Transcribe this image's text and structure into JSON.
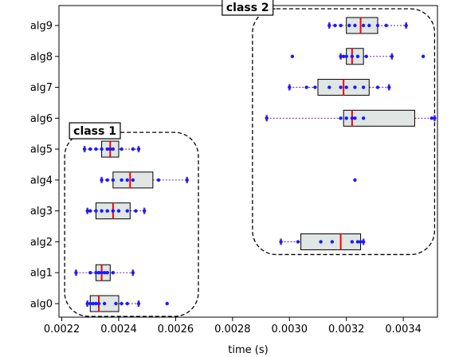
{
  "chart_data": {
    "type": "boxplot",
    "orientation": "horizontal",
    "xlabel": "time (s)",
    "ylabel": "",
    "title": "",
    "xlim": [
      0.00219,
      0.00352
    ],
    "xticks": [
      0.0022,
      0.0024,
      0.0026,
      0.0028,
      0.003,
      0.0032,
      0.0034
    ],
    "xtick_labels": [
      "0.0022",
      "0.0024",
      "0.0026",
      "0.0028",
      "0.0030",
      "0.0032",
      "0.0034"
    ],
    "grid": false,
    "categories": [
      "alg0",
      "alg1",
      "alg2",
      "alg3",
      "alg4",
      "alg5",
      "alg6",
      "alg7",
      "alg8",
      "alg9"
    ],
    "colors": {
      "box_fill": "#dfe6e4",
      "box_edge": "#000000",
      "median": "#ff0000",
      "points": "#1a1aff",
      "whisker": "#7a1a9a",
      "whisker_cap": "#6a2fc0"
    },
    "series": [
      {
        "category": "alg0",
        "whisker_low": 0.00229,
        "q1": 0.0023,
        "median": 0.00233,
        "q3": 0.0024,
        "whisker_high": 0.00247,
        "outliers": [
          0.00257
        ],
        "points": [
          0.00229,
          0.0023,
          0.00231,
          0.00232,
          0.00233,
          0.00235,
          0.00239,
          0.00241,
          0.00243,
          0.00247
        ]
      },
      {
        "category": "alg1",
        "whisker_low": 0.00225,
        "q1": 0.00232,
        "median": 0.00234,
        "q3": 0.00237,
        "whisker_high": 0.00245,
        "outliers": [],
        "points": [
          0.00225,
          0.0023,
          0.00232,
          0.00233,
          0.00234,
          0.00235,
          0.00236,
          0.00238,
          0.00245
        ]
      },
      {
        "category": "alg2",
        "whisker_low": 0.00297,
        "q1": 0.00304,
        "median": 0.00318,
        "q3": 0.00325,
        "whisker_high": 0.00326,
        "outliers": [],
        "points": [
          0.00297,
          0.00303,
          0.00311,
          0.00315,
          0.00322,
          0.00324,
          0.00325,
          0.00326
        ]
      },
      {
        "category": "alg3",
        "whisker_low": 0.00229,
        "q1": 0.00232,
        "median": 0.00238,
        "q3": 0.00244,
        "whisker_high": 0.00249,
        "outliers": [],
        "points": [
          0.00229,
          0.0023,
          0.00232,
          0.00234,
          0.00236,
          0.00238,
          0.0024,
          0.00243,
          0.00246,
          0.00249
        ]
      },
      {
        "category": "alg4",
        "whisker_low": 0.00234,
        "q1": 0.00238,
        "median": 0.00244,
        "q3": 0.00252,
        "whisker_high": 0.00264,
        "outliers": [
          0.00323
        ],
        "points": [
          0.00234,
          0.00236,
          0.00238,
          0.00241,
          0.00243,
          0.00245,
          0.00254,
          0.00264
        ]
      },
      {
        "category": "alg5",
        "whisker_low": 0.00228,
        "q1": 0.00234,
        "median": 0.00237,
        "q3": 0.0024,
        "whisker_high": 0.00247,
        "outliers": [],
        "points": [
          0.00228,
          0.0023,
          0.00232,
          0.00234,
          0.00236,
          0.00237,
          0.00238,
          0.00241,
          0.00245,
          0.00247
        ]
      },
      {
        "category": "alg6",
        "whisker_low": 0.00292,
        "q1": 0.00319,
        "median": 0.00322,
        "q3": 0.00344,
        "whisker_high": 0.00351,
        "outliers": [],
        "points": [
          0.00292,
          0.00318,
          0.0032,
          0.00322,
          0.00323,
          0.00326,
          0.0035,
          0.00351
        ]
      },
      {
        "category": "alg7",
        "whisker_low": 0.003,
        "q1": 0.0031,
        "median": 0.00319,
        "q3": 0.00328,
        "whisker_high": 0.00335,
        "outliers": [],
        "points": [
          0.003,
          0.00306,
          0.00309,
          0.00314,
          0.00318,
          0.0032,
          0.00323,
          0.00326,
          0.00331,
          0.00335
        ]
      },
      {
        "category": "alg8",
        "whisker_low": 0.00318,
        "q1": 0.0032,
        "median": 0.00322,
        "q3": 0.00326,
        "whisker_high": 0.00336,
        "outliers": [
          0.00301,
          0.00347
        ],
        "points": [
          0.00318,
          0.00319,
          0.0032,
          0.00322,
          0.00324,
          0.00327,
          0.00336
        ]
      },
      {
        "category": "alg9",
        "whisker_low": 0.00314,
        "q1": 0.0032,
        "median": 0.00325,
        "q3": 0.00331,
        "whisker_high": 0.00341,
        "outliers": [],
        "points": [
          0.00314,
          0.00316,
          0.00318,
          0.00321,
          0.00323,
          0.00326,
          0.00328,
          0.00331,
          0.00334,
          0.00341
        ]
      }
    ],
    "annotations": [
      {
        "label": "class 1",
        "members": [
          "alg0",
          "alg1",
          "alg2",
          "alg3",
          "alg4",
          "alg5"
        ],
        "x_range": [
          0.00221,
          0.00268
        ],
        "style": "dashed rounded box"
      },
      {
        "label": "class 2",
        "members": [
          "alg2",
          "alg3",
          "alg4",
          "alg5",
          "alg6",
          "alg7",
          "alg8",
          "alg9"
        ],
        "x_range": [
          0.00287,
          0.00351
        ],
        "style": "dashed rounded box"
      }
    ]
  }
}
